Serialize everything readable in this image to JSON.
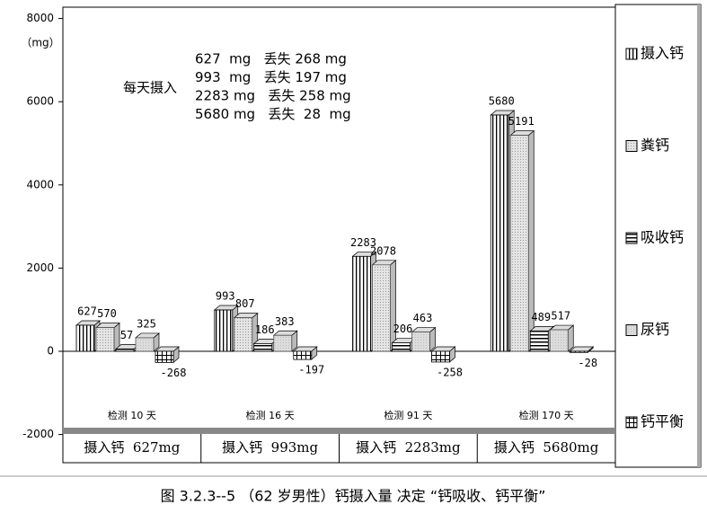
{
  "chart_data": {
    "type": "bar3d",
    "y_unit_label": "（mg）",
    "categories": [
      "检测 10 天",
      "检测 16 天",
      "检测 91 天",
      "检测 170 天"
    ],
    "intake_labels": [
      "摄入钙  627mg",
      "摄入钙  993mg",
      "摄入钙  2283mg",
      "摄入钙  5680mg"
    ],
    "series": [
      {
        "name": "摄入钙",
        "color": "#000000",
        "values": [
          627,
          993,
          2283,
          5680
        ]
      },
      {
        "name": "粪钙",
        "color": "#9a9a9a",
        "values": [
          570,
          807,
          2078,
          5191
        ]
      },
      {
        "name": "吸收钙",
        "color": "#000000",
        "values": [
          57,
          186,
          206,
          489
        ]
      },
      {
        "name": "尿钙",
        "color": "#d8d8d8",
        "values": [
          325,
          383,
          463,
          517
        ]
      },
      {
        "name": "钙平衡",
        "color": "#000000",
        "values": [
          -268,
          -197,
          -258,
          -28
        ]
      }
    ],
    "ylim": [
      -2000,
      8000
    ],
    "yticks": [
      -2000,
      0,
      2000,
      4000,
      6000,
      8000
    ],
    "annotation": {
      "label": "每天摄入",
      "lines": [
        "627  mg   丢失 268 mg",
        "993  mg   丢失 197 mg",
        "2283 mg   丢失 258 mg",
        "5680 mg   丢失  28  mg"
      ]
    },
    "caption": "图  3.2.3--5  （62 岁男性）钙摄入量 决定 “钙吸收、钙平衡”"
  }
}
